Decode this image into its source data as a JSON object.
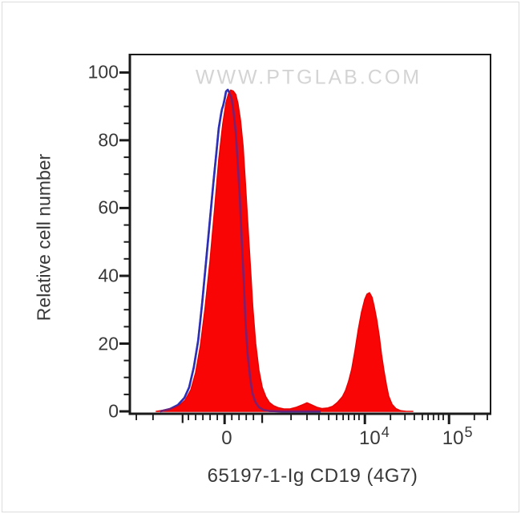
{
  "watermark": {
    "text": "WWW.PTGLAB.COM",
    "color": "#d4d4d4"
  },
  "colors": {
    "red_fill": "#f90505",
    "red_stroke": "#e80303",
    "blue_line": "#2f2fb4",
    "axis": "#1a1a1a",
    "text": "#383838",
    "watermark": "#d4d4d4",
    "background": "#ffffff"
  },
  "chart_data": {
    "type": "area",
    "subtype": "flow-cytometry-histogram-overlay",
    "title": "",
    "xlabel": "65197-1-Ig CD19 (4G7)",
    "ylabel": "Relative cell number",
    "ylim": [
      0,
      105
    ],
    "x_scale": "biexponential (logicle): linear region around 0, log decades up to 10^5",
    "legend": "none",
    "grid": false,
    "y_minor_step": 5,
    "y_major_ticks": [
      {
        "value": 0,
        "label": "0"
      },
      {
        "value": 20,
        "label": "20"
      },
      {
        "value": 40,
        "label": "40"
      },
      {
        "value": 60,
        "label": "60"
      },
      {
        "value": 80,
        "label": "80"
      },
      {
        "value": 100,
        "label": "100"
      }
    ],
    "x_tick_labels": [
      {
        "frac": 0.268,
        "base": "0",
        "sup": ""
      },
      {
        "frac": 0.676,
        "base": "10",
        "sup": "4"
      },
      {
        "frac": 0.906,
        "base": "10",
        "sup": "5"
      }
    ],
    "x_ticks": [
      [
        0.018,
        "minor"
      ],
      [
        0.064,
        "minor"
      ],
      [
        0.146,
        "long"
      ],
      [
        0.162,
        "minor"
      ],
      [
        0.182,
        "minor"
      ],
      [
        0.202,
        "minor"
      ],
      [
        0.222,
        "minor"
      ],
      [
        0.242,
        "minor"
      ],
      [
        0.262,
        "major"
      ],
      [
        0.282,
        "minor"
      ],
      [
        0.302,
        "minor"
      ],
      [
        0.322,
        "minor"
      ],
      [
        0.342,
        "minor"
      ],
      [
        0.366,
        "long"
      ],
      [
        0.446,
        "minor"
      ],
      [
        0.49,
        "minor"
      ],
      [
        0.523,
        "minor"
      ],
      [
        0.55,
        "minor"
      ],
      [
        0.572,
        "minor"
      ],
      [
        0.59,
        "minor"
      ],
      [
        0.605,
        "minor"
      ],
      [
        0.621,
        "minor"
      ],
      [
        0.634,
        "minor"
      ],
      [
        0.65,
        "major"
      ],
      [
        0.721,
        "minor"
      ],
      [
        0.761,
        "minor"
      ],
      [
        0.787,
        "minor"
      ],
      [
        0.809,
        "minor"
      ],
      [
        0.825,
        "minor"
      ],
      [
        0.84,
        "minor"
      ],
      [
        0.854,
        "minor"
      ],
      [
        0.867,
        "minor"
      ],
      [
        0.883,
        "major"
      ],
      [
        0.953,
        "minor"
      ],
      [
        0.989,
        "minor"
      ]
    ],
    "series": [
      {
        "name": "CD19 antibody stained (red filled histogram)",
        "style": "filled",
        "fill": "#f90505",
        "stroke": "#e80303",
        "peaks": [
          {
            "x": "near 0",
            "height": 95
          },
          {
            "x": "~10^4",
            "height": 35
          }
        ],
        "points": [
          [
            0.073,
            0
          ],
          [
            0.098,
            0.4
          ],
          [
            0.12,
            1.0
          ],
          [
            0.138,
            1.8
          ],
          [
            0.153,
            3.3
          ],
          [
            0.169,
            6.4
          ],
          [
            0.182,
            11.4
          ],
          [
            0.195,
            19.2
          ],
          [
            0.208,
            30.3
          ],
          [
            0.222,
            44.5
          ],
          [
            0.235,
            60.3
          ],
          [
            0.246,
            74.1
          ],
          [
            0.257,
            84.7
          ],
          [
            0.266,
            91.1
          ],
          [
            0.273,
            93.7
          ],
          [
            0.279,
            94.8
          ],
          [
            0.286,
            94.5
          ],
          [
            0.293,
            93.5
          ],
          [
            0.299,
            90.9
          ],
          [
            0.306,
            85.9
          ],
          [
            0.313,
            78.3
          ],
          [
            0.319,
            68.2
          ],
          [
            0.326,
            55.8
          ],
          [
            0.333,
            43.3
          ],
          [
            0.34,
            30.8
          ],
          [
            0.348,
            20.1
          ],
          [
            0.357,
            12.1
          ],
          [
            0.366,
            7.1
          ],
          [
            0.376,
            4.3
          ],
          [
            0.386,
            2.6
          ],
          [
            0.397,
            1.7
          ],
          [
            0.41,
            1.1
          ],
          [
            0.426,
            0.7
          ],
          [
            0.443,
            0.7
          ],
          [
            0.461,
            1.2
          ],
          [
            0.477,
            1.9
          ],
          [
            0.49,
            2.5
          ],
          [
            0.503,
            1.9
          ],
          [
            0.517,
            1.2
          ],
          [
            0.532,
            0.8
          ],
          [
            0.548,
            1.0
          ],
          [
            0.561,
            1.5
          ],
          [
            0.574,
            2.6
          ],
          [
            0.588,
            4.3
          ],
          [
            0.597,
            6.2
          ],
          [
            0.605,
            8.8
          ],
          [
            0.614,
            12.5
          ],
          [
            0.623,
            18.0
          ],
          [
            0.632,
            24.1
          ],
          [
            0.641,
            29.3
          ],
          [
            0.65,
            33.1
          ],
          [
            0.656,
            34.6
          ],
          [
            0.663,
            35.0
          ],
          [
            0.67,
            33.6
          ],
          [
            0.676,
            30.8
          ],
          [
            0.683,
            27.0
          ],
          [
            0.69,
            22.0
          ],
          [
            0.696,
            16.8
          ],
          [
            0.703,
            11.8
          ],
          [
            0.71,
            7.6
          ],
          [
            0.716,
            4.5
          ],
          [
            0.725,
            2.1
          ],
          [
            0.736,
            0.8
          ],
          [
            0.749,
            0.2
          ],
          [
            0.765,
            0
          ],
          [
            0.783,
            0
          ]
        ]
      },
      {
        "name": "Control (blue open histogram)",
        "style": "line",
        "stroke": "#2f2fb4",
        "peaks": [
          {
            "x": "near 0",
            "height": 95
          }
        ],
        "points": [
          [
            0.084,
            0
          ],
          [
            0.111,
            0.7
          ],
          [
            0.133,
            1.9
          ],
          [
            0.151,
            4.0
          ],
          [
            0.164,
            7.1
          ],
          [
            0.177,
            13.0
          ],
          [
            0.189,
            20.8
          ],
          [
            0.2,
            31.9
          ],
          [
            0.211,
            44.5
          ],
          [
            0.222,
            57.0
          ],
          [
            0.231,
            67.4
          ],
          [
            0.24,
            76.9
          ],
          [
            0.246,
            83.5
          ],
          [
            0.252,
            87.6
          ],
          [
            0.255,
            89.2
          ],
          [
            0.258,
            90.2
          ],
          [
            0.262,
            92.1
          ],
          [
            0.266,
            94.4
          ],
          [
            0.271,
            94.9
          ],
          [
            0.276,
            93.9
          ],
          [
            0.282,
            92.1
          ],
          [
            0.287,
            88.3
          ],
          [
            0.293,
            82.4
          ],
          [
            0.298,
            74.1
          ],
          [
            0.304,
            63.4
          ],
          [
            0.309,
            51.6
          ],
          [
            0.315,
            38.6
          ],
          [
            0.32,
            26.3
          ],
          [
            0.326,
            16.8
          ],
          [
            0.333,
            9.7
          ],
          [
            0.339,
            5.4
          ],
          [
            0.347,
            2.8
          ],
          [
            0.357,
            1.2
          ],
          [
            0.37,
            0.4
          ],
          [
            0.388,
            0.1
          ],
          [
            0.421,
            0
          ],
          [
            0.528,
            0
          ]
        ]
      }
    ]
  }
}
